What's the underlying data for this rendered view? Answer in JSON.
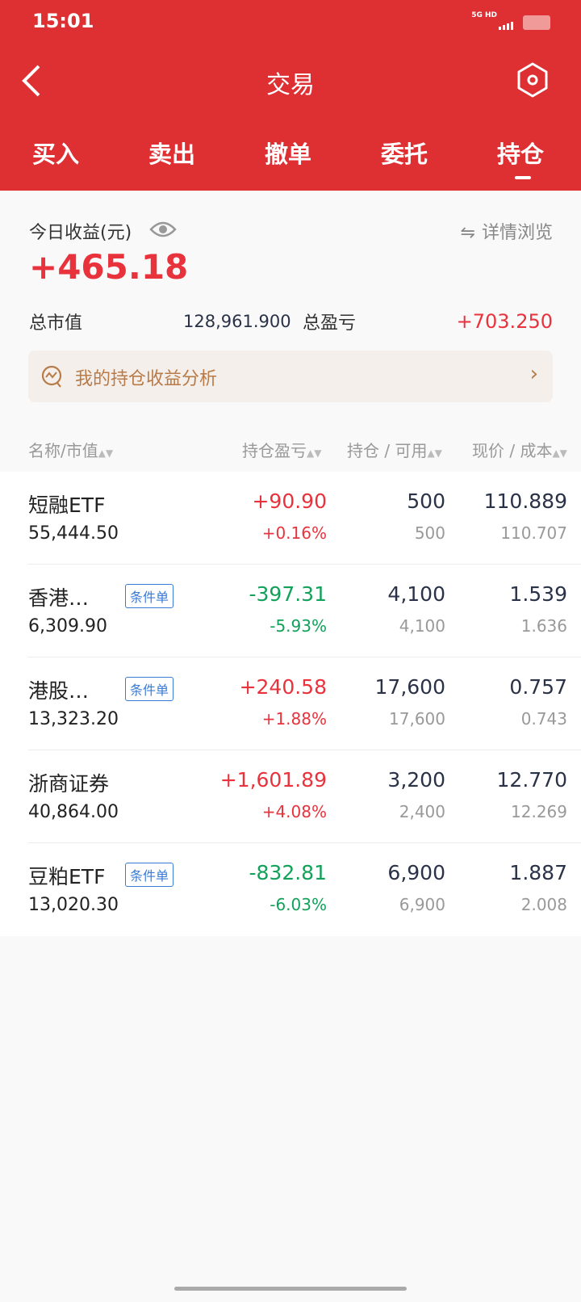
{
  "status": {
    "time": "15:01",
    "network": "5G HD"
  },
  "header": {
    "title": "交易",
    "accent": "#de2f32"
  },
  "tabs": [
    {
      "label": "买入"
    },
    {
      "label": "卖出"
    },
    {
      "label": "撤单"
    },
    {
      "label": "委托"
    },
    {
      "label": "持仓",
      "active": true
    }
  ],
  "summary": {
    "today_label": "今日收益(元)",
    "today_value": "+465.18",
    "detail_link": "详情浏览",
    "market_value_label": "总市值",
    "market_value": "128,961.900",
    "total_pl_label": "总盈亏",
    "total_pl": "+703.250",
    "analysis_banner": "我的持仓收益分析"
  },
  "columns": [
    "名称/市值",
    "持仓盈亏",
    "持仓 / 可用",
    "现价 / 成本"
  ],
  "positions": [
    {
      "name": "短融ETF",
      "market_value": "55,444.50",
      "tag": "",
      "pl": "+90.90",
      "pl_pct": "+0.16%",
      "dir": "up",
      "hold": "500",
      "avail": "500",
      "price": "110.889",
      "cost": "110.707"
    },
    {
      "name": "香港…",
      "market_value": "6,309.90",
      "tag": "条件单",
      "pl": "-397.31",
      "pl_pct": "-5.93%",
      "dir": "down",
      "hold": "4,100",
      "avail": "4,100",
      "price": "1.539",
      "cost": "1.636"
    },
    {
      "name": "港股…",
      "market_value": "13,323.20",
      "tag": "条件单",
      "pl": "+240.58",
      "pl_pct": "+1.88%",
      "dir": "up",
      "hold": "17,600",
      "avail": "17,600",
      "price": "0.757",
      "cost": "0.743"
    },
    {
      "name": "浙商证券",
      "market_value": "40,864.00",
      "tag": "",
      "pl": "+1,601.89",
      "pl_pct": "+4.08%",
      "dir": "up",
      "hold": "3,200",
      "avail": "2,400",
      "price": "12.770",
      "cost": "12.269"
    },
    {
      "name": "豆粕ETF",
      "market_value": "13,020.30",
      "tag": "条件单",
      "pl": "-832.81",
      "pl_pct": "-6.03%",
      "dir": "down",
      "hold": "6,900",
      "avail": "6,900",
      "price": "1.887",
      "cost": "2.008"
    }
  ]
}
